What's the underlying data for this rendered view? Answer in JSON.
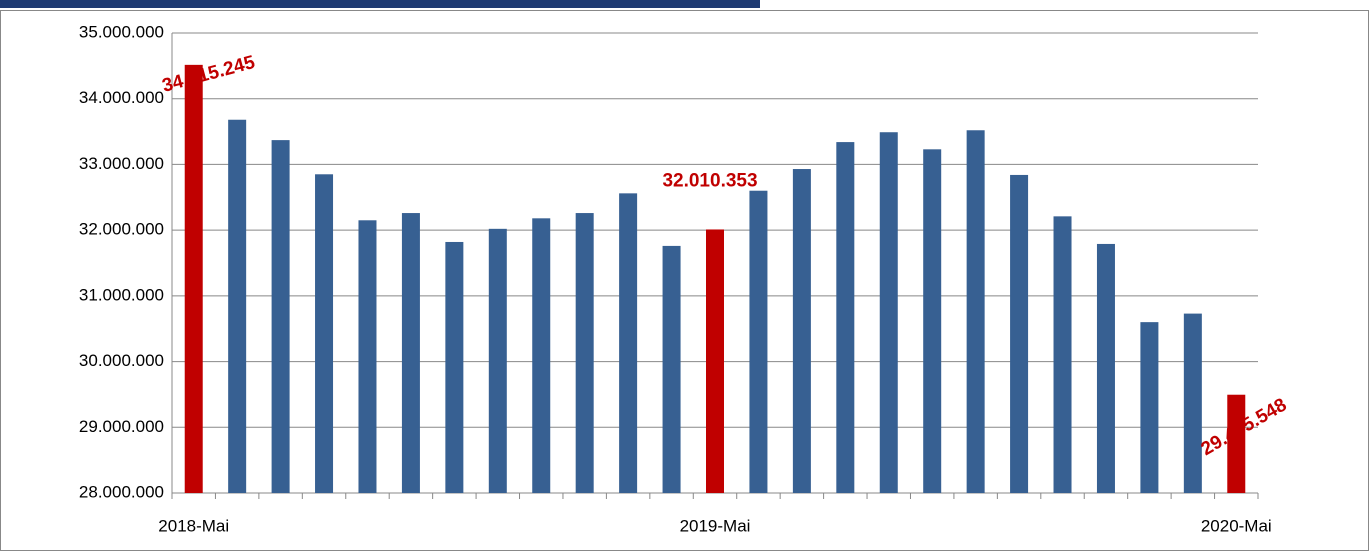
{
  "chart_data": {
    "type": "bar",
    "categories": [
      "2018-Mai",
      null,
      null,
      null,
      null,
      null,
      null,
      null,
      null,
      null,
      null,
      null,
      "2019-Mai",
      null,
      null,
      null,
      null,
      null,
      null,
      null,
      null,
      null,
      null,
      null,
      "2020-Mai"
    ],
    "values": [
      34515245,
      33680000,
      33370000,
      32850000,
      32150000,
      32260000,
      31820000,
      32020000,
      32180000,
      32260000,
      32560000,
      31760000,
      32010353,
      32600000,
      32930000,
      33340000,
      33490000,
      33230000,
      33520000,
      32840000,
      32210000,
      31790000,
      30600000,
      30730000,
      29495548
    ],
    "value_labels": [
      "34.515.245",
      null,
      null,
      null,
      null,
      null,
      null,
      null,
      null,
      null,
      null,
      null,
      "32.010.353",
      null,
      null,
      null,
      null,
      null,
      null,
      null,
      null,
      null,
      null,
      null,
      "29.495.548"
    ],
    "colors": [
      "#c00000",
      "#376092",
      "#376092",
      "#376092",
      "#376092",
      "#376092",
      "#376092",
      "#376092",
      "#376092",
      "#376092",
      "#376092",
      "#376092",
      "#c00000",
      "#376092",
      "#376092",
      "#376092",
      "#376092",
      "#376092",
      "#376092",
      "#376092",
      "#376092",
      "#376092",
      "#376092",
      "#376092",
      "#c00000"
    ],
    "ylim": [
      28000000,
      35000000
    ],
    "yticks": [
      {
        "value": 28000000,
        "label": "28.000.000"
      },
      {
        "value": 29000000,
        "label": "29.000.000"
      },
      {
        "value": 30000000,
        "label": "30.000.000"
      },
      {
        "value": 31000000,
        "label": "31.000.000"
      },
      {
        "value": 32000000,
        "label": "32.000.000"
      },
      {
        "value": 33000000,
        "label": "33.000.000"
      },
      {
        "value": 34000000,
        "label": "34.000.000"
      },
      {
        "value": 35000000,
        "label": "35.000.000"
      }
    ],
    "grid": true
  }
}
